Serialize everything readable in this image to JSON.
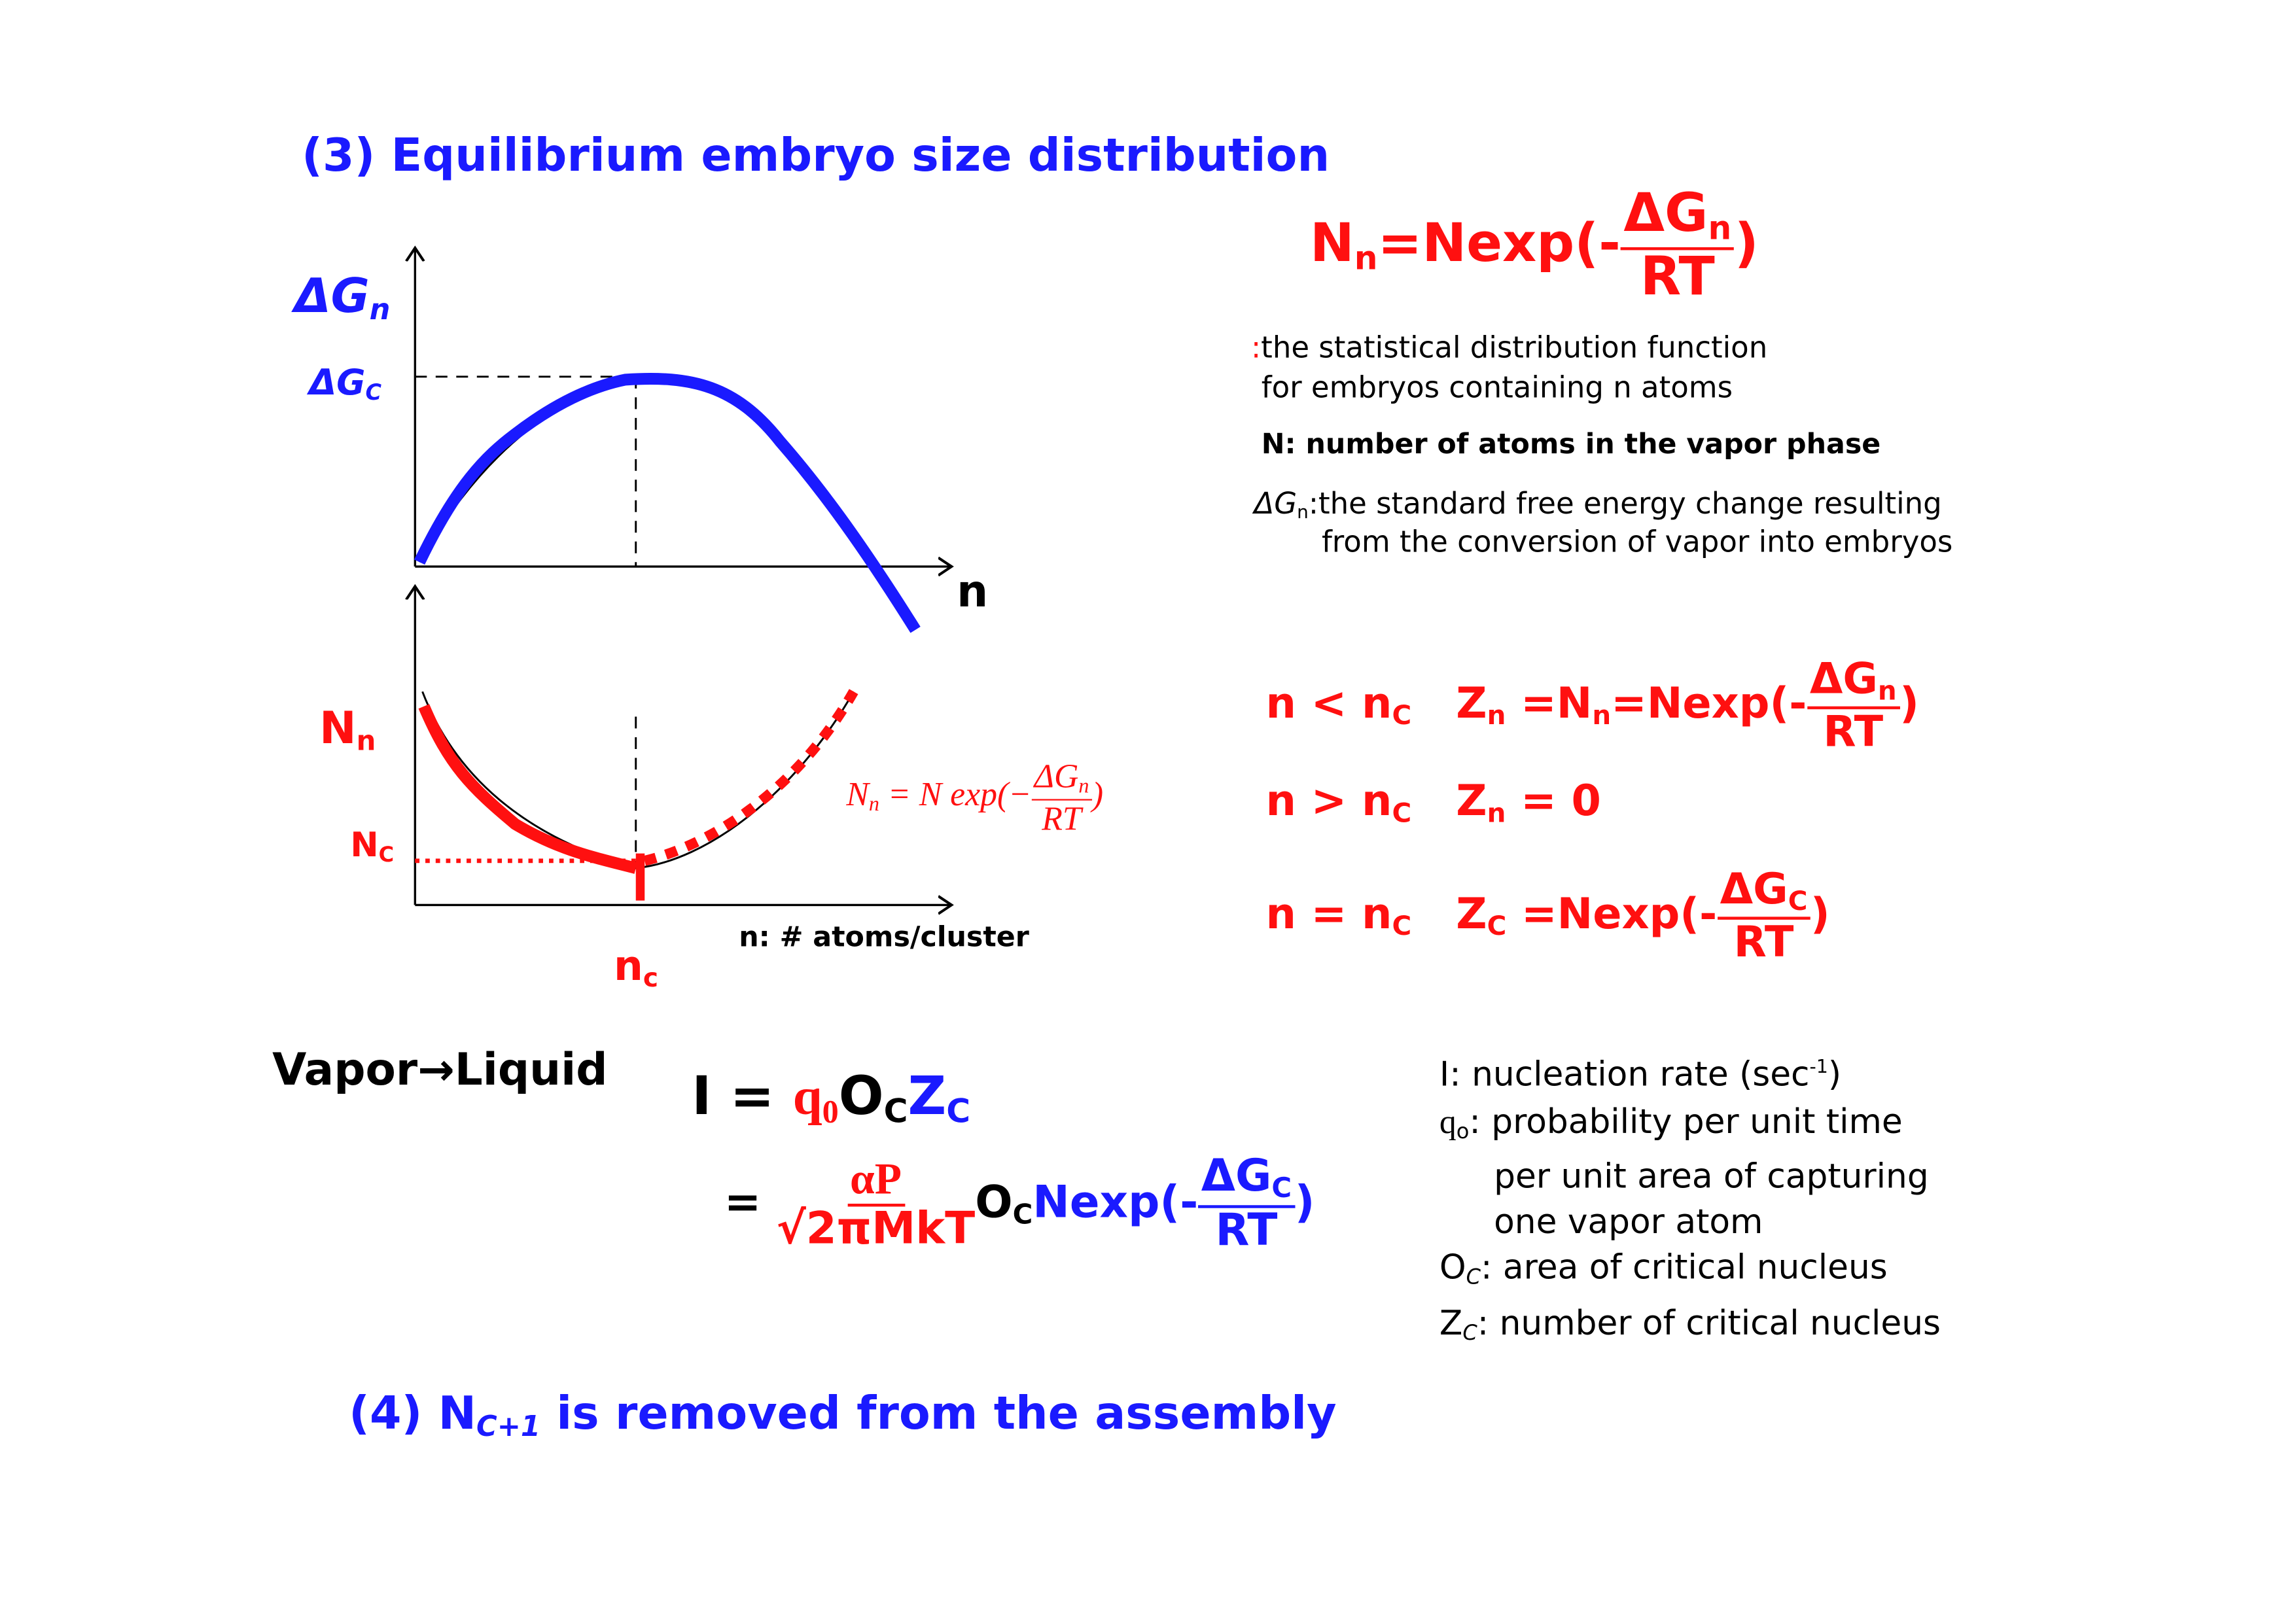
{
  "title": "(3) Equilibrium embryo size distribution",
  "colors": {
    "blue": "#1a1aff",
    "red": "#ff1010",
    "black": "#000000"
  },
  "top_graph": {
    "y_label": "ΔG",
    "y_label_sub": "n",
    "yc_label": "ΔG",
    "yc_label_sub": "C",
    "x_label": "n"
  },
  "bottom_graph": {
    "y_label": "N",
    "y_label_sub": "n",
    "yc_label": "N",
    "yc_label_sub": "C",
    "x_tick": "n",
    "x_tick_sub": "c",
    "x_label": "n: # atoms/cluster",
    "formula": {
      "lhs": "N",
      "lhs_sub": "n",
      "mid": " = N exp(−",
      "num": "ΔG",
      "num_sub": "n",
      "den": "RT",
      "close": ")"
    }
  },
  "main_eq": {
    "lhs": "N",
    "lhs_sub": "n",
    "mid": "=Nexp(-",
    "num": "ΔG",
    "num_sub": "n",
    "den": "RT",
    "close": ")"
  },
  "notes": {
    "line1_colon": ":",
    "line1": "the statistical distribution function",
    "line2": "for embryos containing n atoms",
    "n_def": "N: number of atoms in the vapor phase",
    "dg_sym": "ΔG",
    "dg_sub": "n",
    "dg_def1": ":the standard free energy change resulting",
    "dg_def2": "from the conversion of vapor into embryos"
  },
  "cases": [
    {
      "cond": "n < n",
      "cond_sub": "C",
      "z": "Z",
      "z_sub": "n",
      "rhs": "=N",
      "rhs_sub": "n",
      "rhs2": "=Nexp(-",
      "num": "ΔG",
      "num_sub": "n",
      "den": "RT",
      "close": ")"
    },
    {
      "cond": "n > n",
      "cond_sub": "C",
      "z": "Z",
      "z_sub": "n",
      "rhs": "= 0"
    },
    {
      "cond": "n = n",
      "cond_sub": "C",
      "z": "Z",
      "z_sub": "C",
      "rhs2": "=Nexp(-",
      "num": "ΔG",
      "num_sub": "C",
      "den": "RT",
      "close": ")"
    }
  ],
  "vapor_liquid": "Vapor→Liquid",
  "rate_eq": {
    "I": "I",
    "eq": " = ",
    "q": "q",
    "q_sub": "0",
    "o": "O",
    "o_sub": "C",
    "z": "Z",
    "z_sub": "C"
  },
  "rate_eq2": {
    "eq": "=",
    "num": "αP",
    "den": "√2πMkT",
    "o": "O",
    "o_sub": "C",
    "nexp": "Nexp(-",
    "num2": "ΔG",
    "num2_sub": "C",
    "den2": "RT",
    "close": ")"
  },
  "definitions": [
    {
      "sym": "I",
      "sub": "",
      "text": ":  nucleation rate (sec",
      "sup": "-1",
      "after": ")"
    },
    {
      "sym": "q",
      "sub": "o",
      "text": ": probability per unit time"
    },
    {
      "sym": "",
      "sub": "",
      "text": "per unit area of capturing"
    },
    {
      "sym": "",
      "sub": "",
      "text": "one vapor atom"
    },
    {
      "sym": "O",
      "sub": "C",
      "text": ": area of critical nucleus"
    },
    {
      "sym": "Z",
      "sub": "C",
      "text": ": number of critical nucleus"
    }
  ],
  "footer": {
    "prefix": "(4) N",
    "sub": "C+1",
    "suffix": " is removed from the assembly"
  }
}
